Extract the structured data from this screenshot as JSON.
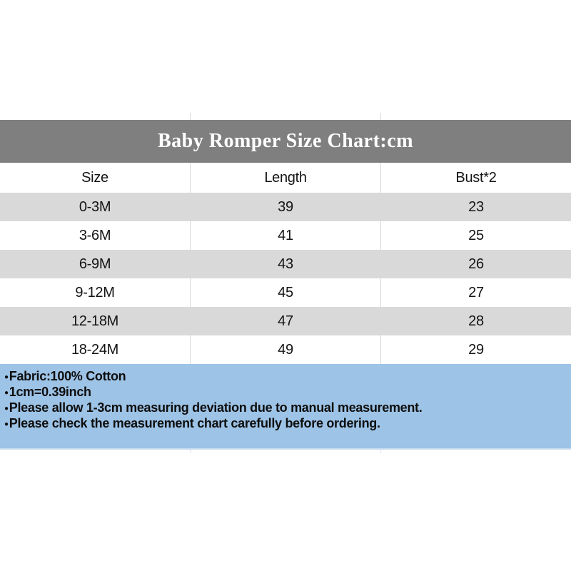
{
  "title_band": {
    "text": "Baby Romper Size Chart:cm"
  },
  "table": {
    "headers": [
      "Size",
      "Length",
      "Bust*2"
    ],
    "rows": [
      [
        "0-3M",
        "39",
        "23"
      ],
      [
        "3-6M",
        "41",
        "25"
      ],
      [
        "6-9M",
        "43",
        "26"
      ],
      [
        "9-12M",
        "45",
        "27"
      ],
      [
        "12-18M",
        "47",
        "28"
      ],
      [
        "18-24M",
        "49",
        "29"
      ]
    ]
  },
  "footer": {
    "bullet": "●",
    "notes": [
      "Fabric:100% Cotton",
      "1cm=0.39inch",
      "Please allow 1-3cm measuring deviation due to manual measurement.",
      "Please check the measurement chart carefully before ordering."
    ]
  },
  "colors": {
    "title_band_bg": "#7f7f7f",
    "title_text": "#ffffff",
    "row_alt_bg": "#d9d9d9",
    "notes_bg": "#9dc3e6",
    "table_text": "#141414",
    "divider": "#d8d8d8"
  },
  "chart_data": {
    "type": "table",
    "title": "Baby Romper Size Chart:cm",
    "unit": "cm",
    "columns": [
      "Size",
      "Length",
      "Bust*2"
    ],
    "rows": [
      [
        "0-3M",
        39,
        23
      ],
      [
        "3-6M",
        41,
        25
      ],
      [
        "6-9M",
        43,
        26
      ],
      [
        "9-12M",
        45,
        27
      ],
      [
        "12-18M",
        47,
        28
      ],
      [
        "18-24M",
        49,
        29
      ]
    ],
    "notes": [
      "Fabric:100% Cotton",
      "1cm=0.39inch",
      "Please allow 1-3cm measuring deviation due to manual measurement.",
      "Please check the measurement chart carefully before ordering."
    ]
  }
}
